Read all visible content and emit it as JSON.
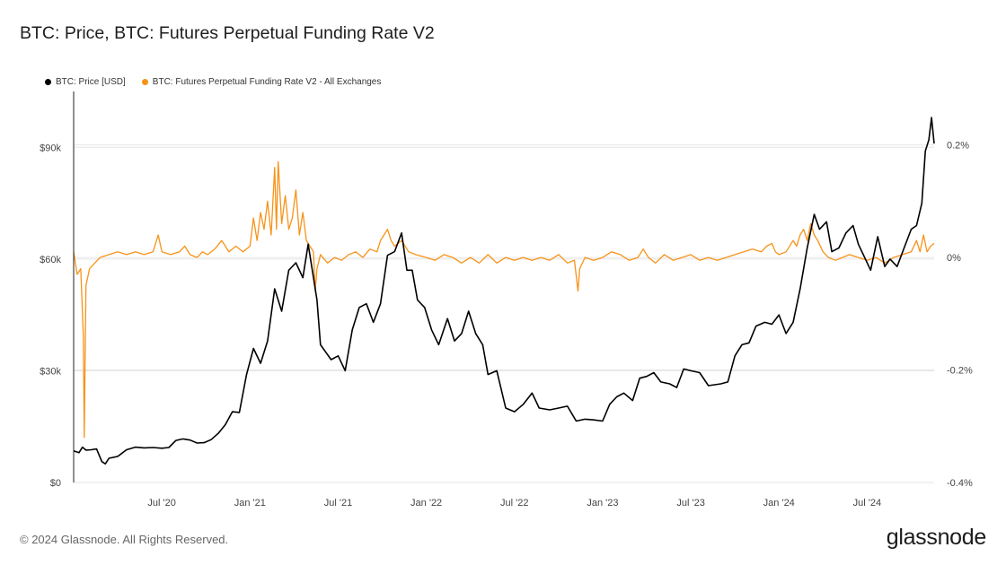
{
  "title": "BTC: Price, BTC: Futures Perpetual Funding Rate V2",
  "footer": {
    "copyright": "© 2024 Glassnode. All Rights Reserved.",
    "brand": "glassnode"
  },
  "colors": {
    "price": "#000000",
    "funding": "#f7931a",
    "grid": "#e6e6e6",
    "axis": "#222222"
  },
  "chart_data": {
    "type": "line",
    "legend": [
      {
        "label": "BTC: Price [USD]",
        "color": "#000000"
      },
      {
        "label": "BTC: Futures Perpetual Funding Rate V2 - All Exchanges",
        "color": "#f7931a"
      }
    ],
    "x_range": [
      2020.0,
      2024.88
    ],
    "x_ticks": [
      {
        "label": "Jul '20",
        "x": 2020.5
      },
      {
        "label": "Jan '21",
        "x": 2021.0
      },
      {
        "label": "Jul '21",
        "x": 2021.5
      },
      {
        "label": "Jan '22",
        "x": 2022.0
      },
      {
        "label": "Jul '22",
        "x": 2022.5
      },
      {
        "label": "Jan '23",
        "x": 2023.0
      },
      {
        "label": "Jul '23",
        "x": 2023.5
      },
      {
        "label": "Jan '24",
        "x": 2024.0
      },
      {
        "label": "Jul '24",
        "x": 2024.5
      }
    ],
    "y_left": {
      "label": "Price [USD]",
      "range": [
        0,
        105000
      ],
      "ticks": [
        {
          "label": "$0",
          "v": 0
        },
        {
          "label": "$30k",
          "v": 30000
        },
        {
          "label": "$60k",
          "v": 60000
        },
        {
          "label": "$90k",
          "v": 90000
        }
      ]
    },
    "y_right": {
      "label": "Funding Rate",
      "range": [
        -0.4,
        0.295
      ],
      "ticks": [
        {
          "label": "-0.4%",
          "v": -0.4
        },
        {
          "label": "-0.2%",
          "v": -0.2
        },
        {
          "label": "0%",
          "v": 0
        },
        {
          "label": "0.2%",
          "v": 0.2
        }
      ]
    },
    "series": [
      {
        "name": "BTC: Price [USD]",
        "axis": "left",
        "color": "#000000",
        "points": [
          [
            2020.0,
            8500
          ],
          [
            2020.03,
            8000
          ],
          [
            2020.05,
            9500
          ],
          [
            2020.07,
            8700
          ],
          [
            2020.1,
            8800
          ],
          [
            2020.13,
            9000
          ],
          [
            2020.16,
            5600
          ],
          [
            2020.18,
            5000
          ],
          [
            2020.2,
            6500
          ],
          [
            2020.25,
            7000
          ],
          [
            2020.3,
            8800
          ],
          [
            2020.35,
            9500
          ],
          [
            2020.4,
            9300
          ],
          [
            2020.45,
            9400
          ],
          [
            2020.5,
            9200
          ],
          [
            2020.54,
            9400
          ],
          [
            2020.58,
            11300
          ],
          [
            2020.62,
            11700
          ],
          [
            2020.66,
            11400
          ],
          [
            2020.7,
            10600
          ],
          [
            2020.74,
            10700
          ],
          [
            2020.78,
            11500
          ],
          [
            2020.82,
            13200
          ],
          [
            2020.86,
            15500
          ],
          [
            2020.9,
            19000
          ],
          [
            2020.94,
            18800
          ],
          [
            2020.98,
            28900
          ],
          [
            2021.02,
            36000
          ],
          [
            2021.06,
            32000
          ],
          [
            2021.1,
            38000
          ],
          [
            2021.14,
            52000
          ],
          [
            2021.18,
            46000
          ],
          [
            2021.22,
            57000
          ],
          [
            2021.26,
            59000
          ],
          [
            2021.3,
            55000
          ],
          [
            2021.33,
            64000
          ],
          [
            2021.36,
            55000
          ],
          [
            2021.38,
            49000
          ],
          [
            2021.4,
            37000
          ],
          [
            2021.43,
            35000
          ],
          [
            2021.46,
            33000
          ],
          [
            2021.5,
            34000
          ],
          [
            2021.54,
            30000
          ],
          [
            2021.58,
            41000
          ],
          [
            2021.62,
            47000
          ],
          [
            2021.66,
            48000
          ],
          [
            2021.7,
            43000
          ],
          [
            2021.74,
            48000
          ],
          [
            2021.78,
            61000
          ],
          [
            2021.82,
            62000
          ],
          [
            2021.86,
            67000
          ],
          [
            2021.89,
            57000
          ],
          [
            2021.92,
            57000
          ],
          [
            2021.95,
            49000
          ],
          [
            2021.99,
            47000
          ],
          [
            2022.03,
            41000
          ],
          [
            2022.07,
            37000
          ],
          [
            2022.12,
            44000
          ],
          [
            2022.16,
            38000
          ],
          [
            2022.2,
            40000
          ],
          [
            2022.24,
            46000
          ],
          [
            2022.28,
            40000
          ],
          [
            2022.32,
            37000
          ],
          [
            2022.35,
            29000
          ],
          [
            2022.4,
            30000
          ],
          [
            2022.45,
            20000
          ],
          [
            2022.5,
            19000
          ],
          [
            2022.55,
            21000
          ],
          [
            2022.6,
            24000
          ],
          [
            2022.64,
            20000
          ],
          [
            2022.7,
            19500
          ],
          [
            2022.75,
            20000
          ],
          [
            2022.8,
            20500
          ],
          [
            2022.85,
            16500
          ],
          [
            2022.9,
            17000
          ],
          [
            2022.95,
            16800
          ],
          [
            2023.0,
            16500
          ],
          [
            2023.04,
            21000
          ],
          [
            2023.08,
            23000
          ],
          [
            2023.12,
            24000
          ],
          [
            2023.17,
            22000
          ],
          [
            2023.21,
            28000
          ],
          [
            2023.25,
            28500
          ],
          [
            2023.29,
            29500
          ],
          [
            2023.33,
            27000
          ],
          [
            2023.38,
            26500
          ],
          [
            2023.42,
            25500
          ],
          [
            2023.46,
            30500
          ],
          [
            2023.5,
            30000
          ],
          [
            2023.55,
            29500
          ],
          [
            2023.6,
            26000
          ],
          [
            2023.67,
            26500
          ],
          [
            2023.71,
            27000
          ],
          [
            2023.75,
            34000
          ],
          [
            2023.79,
            37000
          ],
          [
            2023.83,
            37500
          ],
          [
            2023.87,
            42000
          ],
          [
            2023.92,
            43000
          ],
          [
            2023.96,
            42500
          ],
          [
            2024.0,
            45000
          ],
          [
            2024.04,
            40000
          ],
          [
            2024.08,
            43000
          ],
          [
            2024.12,
            52000
          ],
          [
            2024.16,
            63000
          ],
          [
            2024.2,
            72000
          ],
          [
            2024.23,
            68000
          ],
          [
            2024.27,
            70000
          ],
          [
            2024.3,
            62000
          ],
          [
            2024.34,
            63000
          ],
          [
            2024.38,
            67000
          ],
          [
            2024.42,
            69000
          ],
          [
            2024.45,
            64000
          ],
          [
            2024.48,
            61000
          ],
          [
            2024.52,
            57000
          ],
          [
            2024.56,
            66000
          ],
          [
            2024.6,
            58000
          ],
          [
            2024.63,
            60000
          ],
          [
            2024.67,
            58000
          ],
          [
            2024.71,
            63000
          ],
          [
            2024.75,
            68000
          ],
          [
            2024.78,
            69000
          ],
          [
            2024.81,
            75000
          ],
          [
            2024.83,
            89000
          ],
          [
            2024.85,
            92000
          ],
          [
            2024.865,
            98000
          ],
          [
            2024.88,
            91000
          ]
        ]
      },
      {
        "name": "BTC: Futures Perpetual Funding Rate V2 - All Exchanges",
        "axis": "right",
        "color": "#f7931a",
        "points": [
          [
            2020.0,
            0.01
          ],
          [
            2020.02,
            -0.03
          ],
          [
            2020.04,
            -0.02
          ],
          [
            2020.055,
            -0.14
          ],
          [
            2020.06,
            -0.32
          ],
          [
            2020.07,
            -0.05
          ],
          [
            2020.09,
            -0.02
          ],
          [
            2020.12,
            -0.01
          ],
          [
            2020.15,
            0.0
          ],
          [
            2020.2,
            0.005
          ],
          [
            2020.25,
            0.01
          ],
          [
            2020.3,
            0.005
          ],
          [
            2020.35,
            0.01
          ],
          [
            2020.4,
            0.005
          ],
          [
            2020.45,
            0.01
          ],
          [
            2020.48,
            0.04
          ],
          [
            2020.5,
            0.01
          ],
          [
            2020.55,
            0.005
          ],
          [
            2020.6,
            0.01
          ],
          [
            2020.63,
            0.02
          ],
          [
            2020.66,
            0.005
          ],
          [
            2020.7,
            0.0
          ],
          [
            2020.73,
            0.01
          ],
          [
            2020.76,
            0.005
          ],
          [
            2020.8,
            0.015
          ],
          [
            2020.84,
            0.03
          ],
          [
            2020.88,
            0.01
          ],
          [
            2020.92,
            0.02
          ],
          [
            2020.96,
            0.01
          ],
          [
            2021.0,
            0.02
          ],
          [
            2021.02,
            0.07
          ],
          [
            2021.04,
            0.03
          ],
          [
            2021.06,
            0.08
          ],
          [
            2021.08,
            0.05
          ],
          [
            2021.1,
            0.1
          ],
          [
            2021.12,
            0.04
          ],
          [
            2021.14,
            0.16
          ],
          [
            2021.15,
            0.05
          ],
          [
            2021.16,
            0.17
          ],
          [
            2021.18,
            0.06
          ],
          [
            2021.2,
            0.11
          ],
          [
            2021.22,
            0.05
          ],
          [
            2021.24,
            0.07
          ],
          [
            2021.26,
            0.12
          ],
          [
            2021.28,
            0.04
          ],
          [
            2021.3,
            0.08
          ],
          [
            2021.32,
            0.03
          ],
          [
            2021.34,
            0.02
          ],
          [
            2021.36,
            0.01
          ],
          [
            2021.37,
            -0.06
          ],
          [
            2021.38,
            -0.02
          ],
          [
            2021.4,
            0.005
          ],
          [
            2021.44,
            -0.01
          ],
          [
            2021.48,
            0.0
          ],
          [
            2021.52,
            -0.005
          ],
          [
            2021.56,
            0.005
          ],
          [
            2021.6,
            0.01
          ],
          [
            2021.64,
            0.0
          ],
          [
            2021.68,
            0.015
          ],
          [
            2021.72,
            0.01
          ],
          [
            2021.74,
            0.03
          ],
          [
            2021.76,
            0.04
          ],
          [
            2021.78,
            0.05
          ],
          [
            2021.8,
            0.03
          ],
          [
            2021.82,
            0.02
          ],
          [
            2021.86,
            0.03
          ],
          [
            2021.9,
            0.01
          ],
          [
            2021.94,
            0.005
          ],
          [
            2022.0,
            0.0
          ],
          [
            2022.05,
            -0.005
          ],
          [
            2022.1,
            0.005
          ],
          [
            2022.15,
            0.0
          ],
          [
            2022.2,
            -0.01
          ],
          [
            2022.25,
            0.0
          ],
          [
            2022.3,
            -0.01
          ],
          [
            2022.35,
            0.005
          ],
          [
            2022.4,
            -0.01
          ],
          [
            2022.45,
            0.0
          ],
          [
            2022.5,
            -0.005
          ],
          [
            2022.55,
            0.0
          ],
          [
            2022.6,
            -0.005
          ],
          [
            2022.65,
            0.0
          ],
          [
            2022.7,
            -0.005
          ],
          [
            2022.75,
            0.005
          ],
          [
            2022.8,
            -0.01
          ],
          [
            2022.84,
            -0.005
          ],
          [
            2022.86,
            -0.06
          ],
          [
            2022.87,
            -0.02
          ],
          [
            2022.9,
            0.0
          ],
          [
            2022.95,
            -0.005
          ],
          [
            2023.0,
            0.0
          ],
          [
            2023.05,
            0.01
          ],
          [
            2023.1,
            0.005
          ],
          [
            2023.15,
            -0.005
          ],
          [
            2023.2,
            0.0
          ],
          [
            2023.23,
            0.015
          ],
          [
            2023.26,
            0.0
          ],
          [
            2023.3,
            -0.01
          ],
          [
            2023.35,
            0.005
          ],
          [
            2023.4,
            -0.005
          ],
          [
            2023.45,
            0.0
          ],
          [
            2023.5,
            0.005
          ],
          [
            2023.55,
            -0.005
          ],
          [
            2023.6,
            0.0
          ],
          [
            2023.65,
            -0.005
          ],
          [
            2023.7,
            0.0
          ],
          [
            2023.75,
            0.005
          ],
          [
            2023.8,
            0.01
          ],
          [
            2023.85,
            0.015
          ],
          [
            2023.9,
            0.01
          ],
          [
            2023.93,
            0.02
          ],
          [
            2023.96,
            0.025
          ],
          [
            2023.98,
            0.01
          ],
          [
            2024.0,
            0.005
          ],
          [
            2024.04,
            0.01
          ],
          [
            2024.08,
            0.03
          ],
          [
            2024.1,
            0.02
          ],
          [
            2024.12,
            0.04
          ],
          [
            2024.14,
            0.05
          ],
          [
            2024.16,
            0.03
          ],
          [
            2024.18,
            0.06
          ],
          [
            2024.2,
            0.04
          ],
          [
            2024.22,
            0.03
          ],
          [
            2024.25,
            0.01
          ],
          [
            2024.28,
            0.0
          ],
          [
            2024.32,
            -0.005
          ],
          [
            2024.36,
            0.0
          ],
          [
            2024.4,
            0.005
          ],
          [
            2024.45,
            0.0
          ],
          [
            2024.5,
            -0.005
          ],
          [
            2024.55,
            0.0
          ],
          [
            2024.6,
            -0.01
          ],
          [
            2024.65,
            0.0
          ],
          [
            2024.7,
            0.005
          ],
          [
            2024.75,
            0.01
          ],
          [
            2024.78,
            0.03
          ],
          [
            2024.8,
            0.01
          ],
          [
            2024.82,
            0.04
          ],
          [
            2024.84,
            0.01
          ],
          [
            2024.86,
            0.02
          ],
          [
            2024.88,
            0.025
          ]
        ]
      }
    ]
  }
}
